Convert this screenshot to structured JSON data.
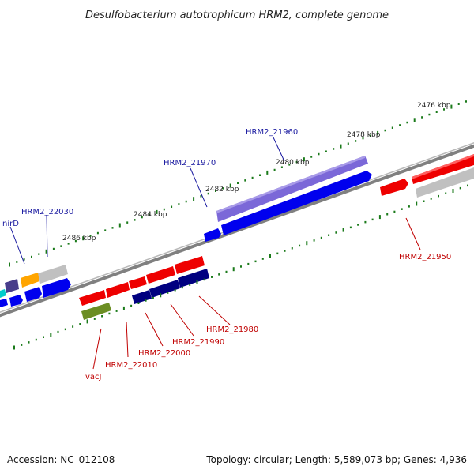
{
  "title": "Desulfobacterium autotrophicum HRM2, complete genome",
  "ticks": [
    "2476 kbp",
    "2478 kbp",
    "2480 kbp",
    "2482 kbp",
    "2484 kbp",
    "2486 kbp"
  ],
  "gene_labels": {
    "hrm2_21960": "HRM2_21960",
    "hrm2_21970": "HRM2_21970",
    "hrm2_22030": "HRM2_22030",
    "nird": "nirD",
    "hrm2_21950": "HRM2_21950",
    "hrm2_21980": "HRM2_21980",
    "hrm2_21990": "HRM2_21990",
    "hrm2_22000": "HRM2_22000",
    "hrm2_22010": "HRM2_22010",
    "vacj": "vacJ"
  },
  "footer": {
    "accession": "Accession: NC_012108",
    "summary": "Topology: circular; Length: 5,589,073 bp; Genes: 4,936"
  },
  "colors": {
    "red": "#ee0000",
    "grey": "#c0c0c0",
    "blue": "#0000ee",
    "lavender": "#7b68d8",
    "navy": "#000080",
    "olive": "#6b8e23",
    "orange": "#ffa500",
    "slate": "#483d8b",
    "cyan": "#00cccc",
    "tick": "#1a7a1a"
  }
}
